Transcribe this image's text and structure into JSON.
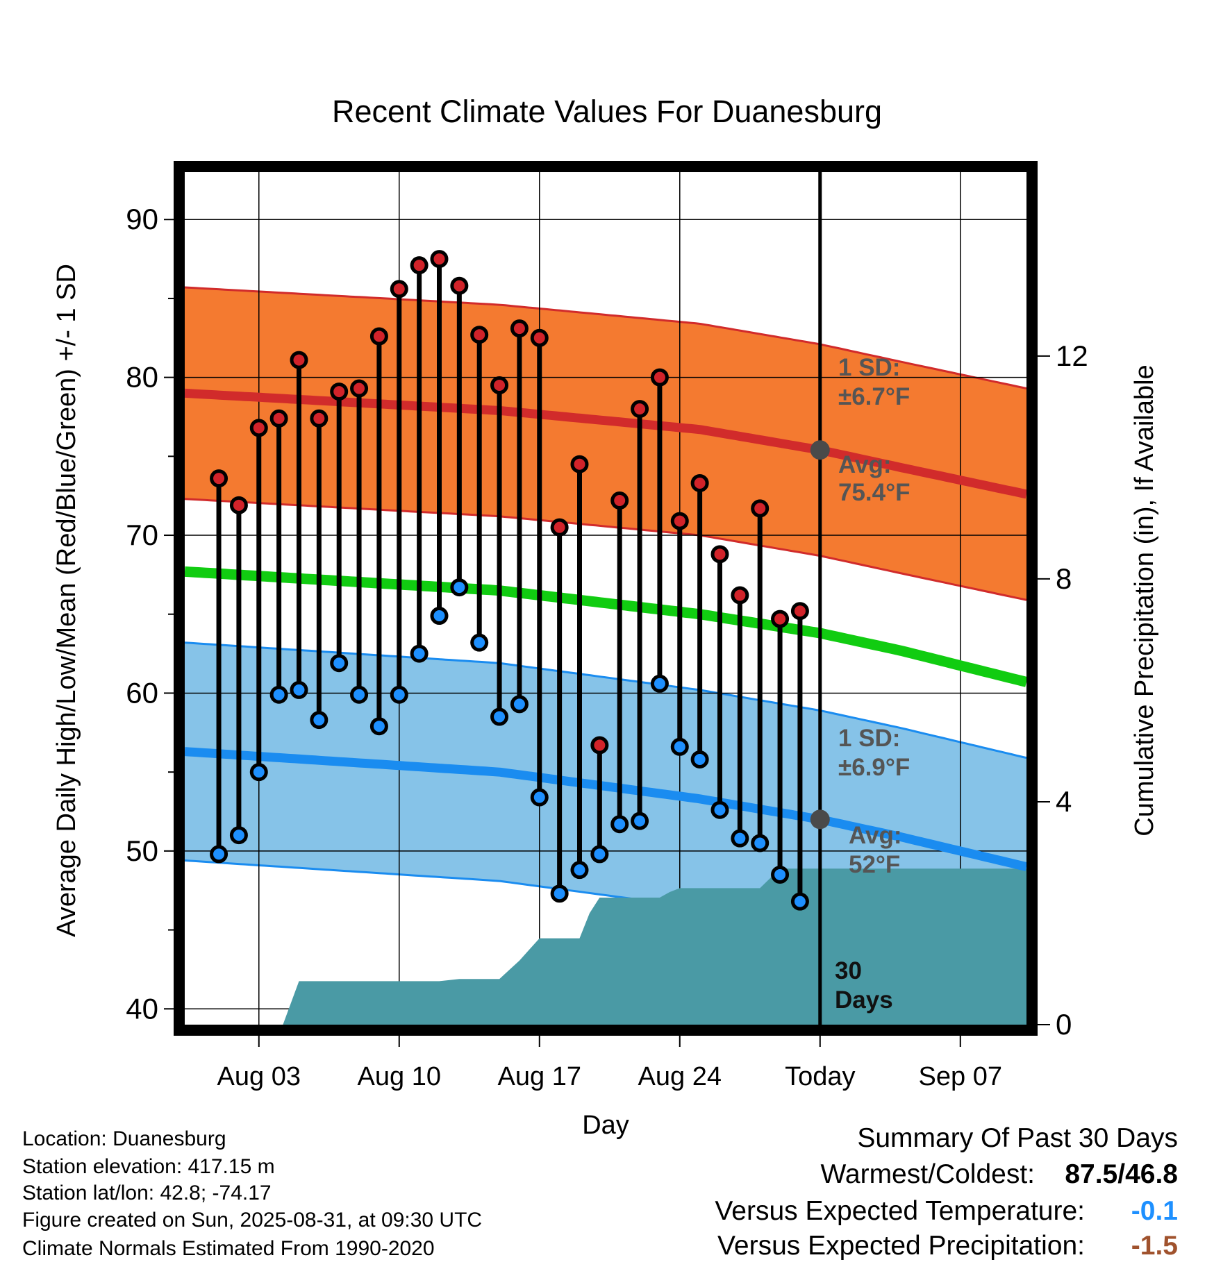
{
  "chart_data": {
    "type": "line",
    "title": "Recent Climate Values For Duanesburg",
    "xlabel": "Day",
    "ylabel": "Average Daily High/Low/Mean (Red/Blue/Green) +/- 1 SD",
    "y2label": "Cumulative Precipitation (in), If Available",
    "ylim": [
      39,
      93
    ],
    "y2lim": [
      0,
      15.3
    ],
    "yticks": [
      "40",
      "50",
      "60",
      "70",
      "80",
      "90"
    ],
    "y2ticks": [
      "0",
      "4",
      "8",
      "12"
    ],
    "xlim": [
      -0.7,
      41.3
    ],
    "xticks": [
      {
        "label": "Aug 03",
        "day": 3
      },
      {
        "label": "Aug 10",
        "day": 10
      },
      {
        "label": "Aug 17",
        "day": 17
      },
      {
        "label": "Aug 24",
        "day": 24
      },
      {
        "label": "Today",
        "day": 31
      },
      {
        "label": "Sep 07",
        "day": 38
      }
    ],
    "grid": true,
    "days": [
      1,
      2,
      3,
      4,
      5,
      6,
      7,
      8,
      9,
      10,
      11,
      12,
      13,
      14,
      15,
      16,
      17,
      18,
      19,
      20,
      21,
      22,
      23,
      24,
      25,
      26,
      27,
      28,
      29,
      30
    ],
    "highs": [
      73.6,
      71.9,
      76.8,
      77.4,
      81.1,
      77.4,
      79.1,
      79.3,
      82.6,
      85.6,
      87.1,
      87.5,
      85.8,
      82.7,
      79.5,
      83.1,
      82.5,
      70.5,
      74.5,
      56.7,
      72.2,
      78.0,
      80.0,
      70.9,
      73.3,
      68.8,
      66.2,
      71.7,
      64.7,
      65.2
    ],
    "lows": [
      49.8,
      51.0,
      55.0,
      59.9,
      60.2,
      58.3,
      61.9,
      59.9,
      57.9,
      59.9,
      62.5,
      64.9,
      66.7,
      63.2,
      58.5,
      59.3,
      53.4,
      47.3,
      48.8,
      49.8,
      51.7,
      51.9,
      60.6,
      56.6,
      55.8,
      52.6,
      50.8,
      50.5,
      48.5,
      46.8
    ],
    "normal_high": {
      "x": [
        -0.7,
        15,
        25,
        31,
        35,
        41.3
      ],
      "values": [
        79.0,
        77.9,
        76.7,
        75.4,
        74.3,
        72.6
      ]
    },
    "normal_high_sd": 6.7,
    "normal_mean": {
      "x": [
        -0.7,
        15,
        25,
        31,
        35,
        41.3
      ],
      "values": [
        67.7,
        66.5,
        65.0,
        63.8,
        62.7,
        60.7
      ]
    },
    "normal_low": {
      "x": [
        -0.7,
        15,
        25,
        31,
        35,
        41.3
      ],
      "values": [
        56.3,
        55.0,
        53.3,
        52.0,
        50.9,
        49.0
      ]
    },
    "normal_low_sd": 6.9,
    "precip": {
      "x": [
        4.2,
        5,
        7,
        10,
        12,
        13,
        14,
        15,
        16,
        17,
        18,
        19,
        19.5,
        20,
        21,
        22,
        23,
        23.5,
        24,
        25,
        26,
        27,
        28,
        29,
        30,
        31,
        41.3
      ],
      "values": [
        0,
        0.78,
        0.78,
        0.78,
        0.78,
        0.82,
        0.82,
        0.82,
        1.15,
        1.55,
        1.55,
        1.55,
        2.0,
        2.28,
        2.28,
        2.28,
        2.28,
        2.38,
        2.45,
        2.45,
        2.45,
        2.45,
        2.45,
        2.8,
        2.8,
        2.8,
        2.8
      ]
    },
    "annotations": {
      "high_sd_label": "1 SD:",
      "high_sd_value": "±6.7°F",
      "high_avg_label": "Avg:",
      "high_avg_value": "75.4°F",
      "low_sd_label": "1 SD:",
      "low_sd_value": "±6.9°F",
      "low_avg_label": "Avg:",
      "low_avg_value": "52°F",
      "days_label_1": "30",
      "days_label_2": "Days"
    },
    "colors": {
      "high_band": "#f47a30",
      "high_line": "#d12b2b",
      "mean_line": "#11cc11",
      "low_band": "#86c3e8",
      "low_line": "#1a8cf0",
      "precip": "#4a9aa5",
      "high_marker": "#d2232a",
      "low_marker": "#1e90ff",
      "annotation": "#555555"
    }
  },
  "footer": {
    "location": "Location: Duanesburg",
    "elevation": "Station elevation: 417.15 m",
    "latlon": "Station lat/lon: 42.8; -74.17",
    "created": "Figure created on Sun, 2025-08-31, at 09:30 UTC",
    "normals": "Climate Normals Estimated From 1990-2020"
  },
  "summary": {
    "title": "Summary Of Past 30 Days",
    "warm_cold_label": "Warmest/Coldest:",
    "warm_cold_value": "87.5/46.8",
    "temp_label": "Versus Expected Temperature:",
    "temp_value": "-0.1",
    "temp_color": "#1e90ff",
    "precip_label": "Versus Expected Precipitation:",
    "precip_value": "-1.5",
    "precip_color": "#a0522d"
  }
}
